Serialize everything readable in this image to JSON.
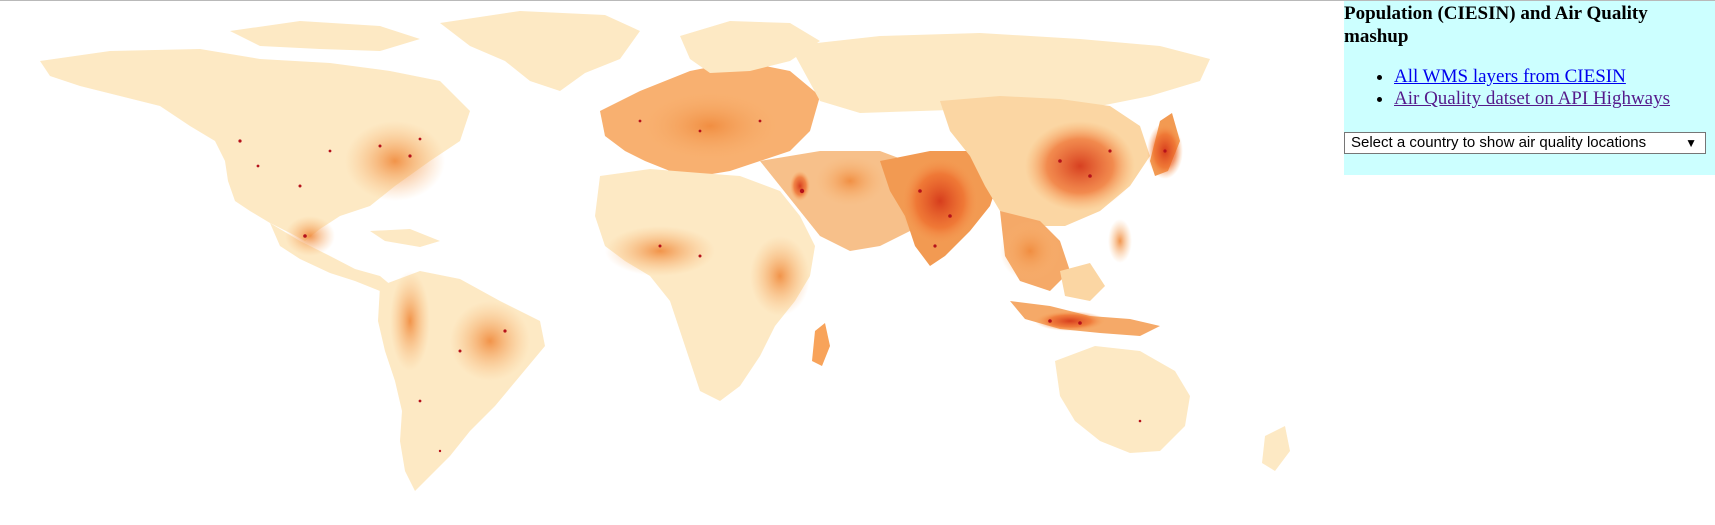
{
  "panel": {
    "title": "Population (CIESIN) and Air Quality mashup",
    "links": [
      {
        "label": "All WMS layers from CIESIN"
      },
      {
        "label": "Air Quality datset on API Highways"
      }
    ],
    "country_select": {
      "selected": "Select a country to show air quality locations",
      "arrow_icon": "chevron-down-icon"
    },
    "background_color": "#ccffff"
  },
  "map": {
    "layer": "population density",
    "colors": {
      "low": "#fde9c4",
      "medium": "#f8a35a",
      "high": "#ee6a2a",
      "very_high": "#c62315",
      "land_edge": "#ffe8c0"
    }
  }
}
